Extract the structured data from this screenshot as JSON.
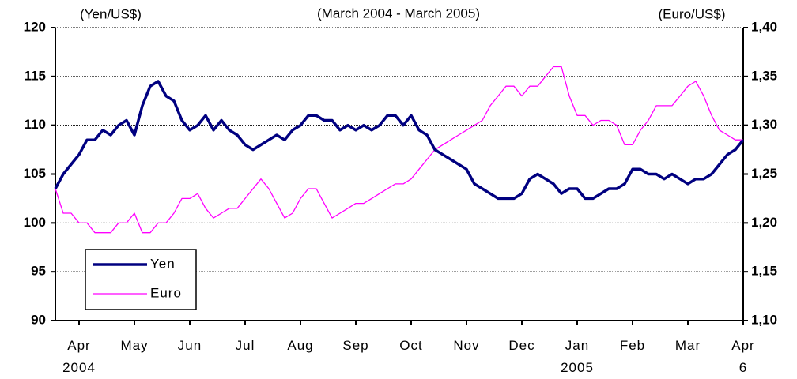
{
  "chart_data": {
    "type": "line",
    "title": "(March 2004 - March 2005)",
    "y_label": "(Yen/US$)",
    "y2_label": "(Euro/US$)",
    "categories": [
      null,
      null,
      null,
      "Apr\n2004",
      null,
      null,
      null,
      null,
      null,
      null,
      "May",
      null,
      null,
      null,
      null,
      null,
      null,
      "Jun",
      null,
      null,
      null,
      null,
      null,
      null,
      "Jul",
      null,
      null,
      null,
      null,
      null,
      null,
      "Aug",
      null,
      null,
      null,
      null,
      null,
      null,
      "Sep",
      null,
      null,
      null,
      null,
      null,
      null,
      "Oct",
      null,
      null,
      null,
      null,
      null,
      null,
      "Nov",
      null,
      null,
      null,
      null,
      null,
      null,
      "Dec",
      null,
      null,
      null,
      null,
      null,
      null,
      "Jan\n2005",
      null,
      null,
      null,
      null,
      null,
      null,
      "Feb",
      null,
      null,
      null,
      null,
      null,
      null,
      "Mar",
      null,
      null,
      null,
      null,
      null,
      null,
      "Apr\n6"
    ],
    "series": [
      {
        "name": "Yen",
        "color": "#000080",
        "axis": "y",
        "values": [
          103.5,
          105,
          106,
          107,
          108.5,
          108.5,
          109.5,
          109,
          110,
          110.5,
          109,
          112,
          114,
          114.5,
          113,
          112.5,
          110.5,
          109.5,
          110,
          111,
          109.5,
          110.5,
          109.5,
          109,
          108,
          107.5,
          108,
          108.5,
          109,
          108.5,
          109.5,
          110,
          111,
          111,
          110.5,
          110.5,
          109.5,
          110,
          109.5,
          110,
          109.5,
          110,
          111,
          111,
          110,
          111,
          109.5,
          109,
          107.5,
          107,
          106.5,
          106,
          105.5,
          104,
          103.5,
          103,
          102.5,
          102.5,
          102.5,
          103,
          104.5,
          105,
          104.5,
          104,
          103,
          103.5,
          103.5,
          102.5,
          102.5,
          103,
          103.5,
          103.5,
          104,
          105.5,
          105.5,
          105,
          105,
          104.5,
          105,
          104.5,
          104,
          104.5,
          104.5,
          105,
          106,
          107,
          107.5,
          108.5
        ]
      },
      {
        "name": "Euro",
        "color": "#ff00ff",
        "axis": "y2",
        "values": [
          1.235,
          1.21,
          1.21,
          1.2,
          1.2,
          1.19,
          1.19,
          1.19,
          1.2,
          1.2,
          1.21,
          1.19,
          1.19,
          1.2,
          1.2,
          1.21,
          1.225,
          1.225,
          1.23,
          1.215,
          1.205,
          1.21,
          1.215,
          1.215,
          1.225,
          1.235,
          1.245,
          1.235,
          1.22,
          1.205,
          1.21,
          1.225,
          1.235,
          1.235,
          1.22,
          1.205,
          1.21,
          1.215,
          1.22,
          1.22,
          1.225,
          1.23,
          1.235,
          1.24,
          1.24,
          1.245,
          1.255,
          1.265,
          1.275,
          1.28,
          1.285,
          1.29,
          1.295,
          1.3,
          1.305,
          1.32,
          1.33,
          1.34,
          1.34,
          1.33,
          1.34,
          1.34,
          1.35,
          1.36,
          1.36,
          1.33,
          1.31,
          1.31,
          1.3,
          1.305,
          1.305,
          1.3,
          1.28,
          1.28,
          1.295,
          1.305,
          1.32,
          1.32,
          1.32,
          1.33,
          1.34,
          1.345,
          1.33,
          1.31,
          1.295,
          1.29,
          1.285,
          1.285
        ]
      }
    ],
    "ylim": [
      90,
      120
    ],
    "yticks": [
      90,
      95,
      100,
      105,
      110,
      115,
      120
    ],
    "y2lim": [
      1.1,
      1.4
    ],
    "y2ticks": [
      {
        "value": 1.1,
        "label": "1,10"
      },
      {
        "value": 1.15,
        "label": "1,15"
      },
      {
        "value": 1.2,
        "label": "1,20"
      },
      {
        "value": 1.25,
        "label": "1,25"
      },
      {
        "value": 1.3,
        "label": "1,30"
      },
      {
        "value": 1.35,
        "label": "1,35"
      },
      {
        "value": 1.4,
        "label": "1,40"
      }
    ],
    "grid": true,
    "legend": "lower-left"
  }
}
